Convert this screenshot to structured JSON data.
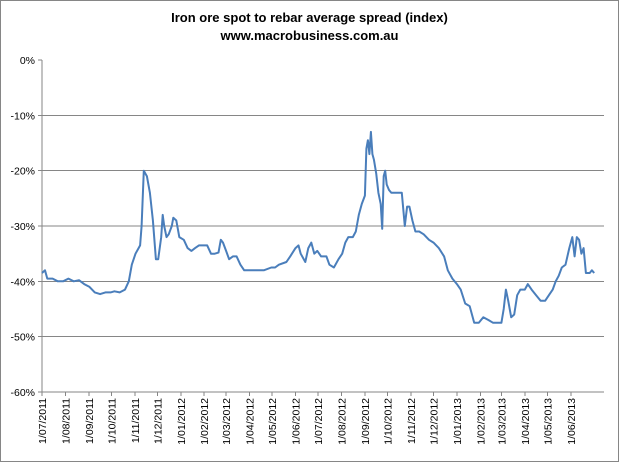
{
  "chart_data": {
    "type": "line",
    "title": "Iron ore spot to rebar average spread (index)",
    "subtitle": "www.macrobusiness.com.au",
    "xlabel": "",
    "ylabel": "",
    "ylim": [
      -60,
      0
    ],
    "yticks": [
      "0%",
      "-10%",
      "-20%",
      "-30%",
      "-40%",
      "-50%",
      "-60%"
    ],
    "gridlines": [
      -10,
      -20,
      -30,
      -40,
      -50,
      -60
    ],
    "grid": true,
    "legend": "none",
    "line_color": "#4a7ebb",
    "x_start": "2011-07-01",
    "x_end": "2013-07-15",
    "categories": [
      "1/07/2011",
      "1/08/2011",
      "1/09/2011",
      "1/10/2011",
      "1/11/2011",
      "1/12/2011",
      "1/01/2012",
      "1/02/2012",
      "1/03/2012",
      "1/04/2012",
      "1/05/2012",
      "1/06/2012",
      "1/07/2012",
      "1/08/2012",
      "1/09/2012",
      "1/10/2012",
      "1/11/2012",
      "1/12/2012",
      "1/01/2013",
      "1/02/2013",
      "1/03/2013",
      "1/04/2013",
      "1/05/2013",
      "1/06/2013"
    ],
    "series": [
      {
        "points": [
          [
            "2011-07-01",
            -38.5
          ],
          [
            "2011-07-05",
            -38.0
          ],
          [
            "2011-07-08",
            -39.5
          ],
          [
            "2011-07-15",
            -39.5
          ],
          [
            "2011-07-22",
            -40.0
          ],
          [
            "2011-07-29",
            -40.0
          ],
          [
            "2011-08-05",
            -39.5
          ],
          [
            "2011-08-12",
            -40.0
          ],
          [
            "2011-08-19",
            -39.8
          ],
          [
            "2011-08-26",
            -40.5
          ],
          [
            "2011-09-02",
            -41.0
          ],
          [
            "2011-09-09",
            -42.0
          ],
          [
            "2011-09-16",
            -42.3
          ],
          [
            "2011-09-23",
            -42.0
          ],
          [
            "2011-09-30",
            -42.0
          ],
          [
            "2011-10-05",
            -41.8
          ],
          [
            "2011-10-12",
            -42.0
          ],
          [
            "2011-10-19",
            -41.5
          ],
          [
            "2011-10-24",
            -40.0
          ],
          [
            "2011-10-28",
            -37.0
          ],
          [
            "2011-11-02",
            -35.0
          ],
          [
            "2011-11-06",
            -34.0
          ],
          [
            "2011-11-08",
            -33.5
          ],
          [
            "2011-11-10",
            -30.0
          ],
          [
            "2011-11-13",
            -20.0
          ],
          [
            "2011-11-17",
            -21.0
          ],
          [
            "2011-11-21",
            -24.0
          ],
          [
            "2011-11-25",
            -29.0
          ],
          [
            "2011-11-29",
            -36.0
          ],
          [
            "2011-12-02",
            -36.0
          ],
          [
            "2011-12-06",
            -32.0
          ],
          [
            "2011-12-08",
            -28.0
          ],
          [
            "2011-12-10",
            -30.0
          ],
          [
            "2011-12-13",
            -32.0
          ],
          [
            "2011-12-16",
            -31.5
          ],
          [
            "2011-12-20",
            -30.0
          ],
          [
            "2011-12-22",
            -28.5
          ],
          [
            "2011-12-26",
            -29.0
          ],
          [
            "2011-12-30",
            -32.0
          ],
          [
            "2012-01-05",
            -32.5
          ],
          [
            "2012-01-10",
            -34.0
          ],
          [
            "2012-01-15",
            -34.5
          ],
          [
            "2012-01-20",
            -34.0
          ],
          [
            "2012-01-25",
            -33.5
          ],
          [
            "2012-01-30",
            -33.5
          ],
          [
            "2012-02-05",
            -33.5
          ],
          [
            "2012-02-10",
            -35.0
          ],
          [
            "2012-02-15",
            -35.0
          ],
          [
            "2012-02-20",
            -34.8
          ],
          [
            "2012-02-23",
            -32.5
          ],
          [
            "2012-02-26",
            -33.0
          ],
          [
            "2012-03-01",
            -34.5
          ],
          [
            "2012-03-05",
            -36.0
          ],
          [
            "2012-03-10",
            -35.5
          ],
          [
            "2012-03-15",
            -35.5
          ],
          [
            "2012-03-20",
            -37.0
          ],
          [
            "2012-03-25",
            -38.0
          ],
          [
            "2012-04-01",
            -38.0
          ],
          [
            "2012-04-10",
            -38.0
          ],
          [
            "2012-04-20",
            -38.0
          ],
          [
            "2012-04-30",
            -37.5
          ],
          [
            "2012-05-05",
            -37.5
          ],
          [
            "2012-05-10",
            -37.0
          ],
          [
            "2012-05-20",
            -36.5
          ],
          [
            "2012-05-25",
            -35.5
          ],
          [
            "2012-06-01",
            -34.0
          ],
          [
            "2012-06-05",
            -33.5
          ],
          [
            "2012-06-08",
            -35.0
          ],
          [
            "2012-06-14",
            -36.5
          ],
          [
            "2012-06-18",
            -34.0
          ],
          [
            "2012-06-22",
            -33.0
          ],
          [
            "2012-06-26",
            -35.0
          ],
          [
            "2012-06-30",
            -34.5
          ],
          [
            "2012-07-05",
            -35.5
          ],
          [
            "2012-07-12",
            -35.5
          ],
          [
            "2012-07-16",
            -37.0
          ],
          [
            "2012-07-22",
            -37.5
          ],
          [
            "2012-07-28",
            -36.0
          ],
          [
            "2012-08-02",
            -35.0
          ],
          [
            "2012-08-06",
            -33.0
          ],
          [
            "2012-08-10",
            -32.0
          ],
          [
            "2012-08-16",
            -32.0
          ],
          [
            "2012-08-20",
            -31.0
          ],
          [
            "2012-08-24",
            -28.0
          ],
          [
            "2012-08-28",
            -26.0
          ],
          [
            "2012-09-01",
            -24.5
          ],
          [
            "2012-09-03",
            -16.0
          ],
          [
            "2012-09-05",
            -14.5
          ],
          [
            "2012-09-07",
            -17.0
          ],
          [
            "2012-09-09",
            -13.0
          ],
          [
            "2012-09-11",
            -17.0
          ],
          [
            "2012-09-13",
            -18.0
          ],
          [
            "2012-09-16",
            -20.5
          ],
          [
            "2012-09-19",
            -24.0
          ],
          [
            "2012-09-22",
            -26.0
          ],
          [
            "2012-09-24",
            -30.5
          ],
          [
            "2012-09-26",
            -21.0
          ],
          [
            "2012-09-28",
            -20.0
          ],
          [
            "2012-09-30",
            -22.5
          ],
          [
            "2012-10-03",
            -23.5
          ],
          [
            "2012-10-06",
            -24.0
          ],
          [
            "2012-10-15",
            -24.0
          ],
          [
            "2012-10-20",
            -24.0
          ],
          [
            "2012-10-24",
            -30.0
          ],
          [
            "2012-10-27",
            -26.5
          ],
          [
            "2012-10-30",
            -26.5
          ],
          [
            "2012-11-03",
            -29.0
          ],
          [
            "2012-11-07",
            -31.0
          ],
          [
            "2012-11-12",
            -31.0
          ],
          [
            "2012-11-18",
            -31.5
          ],
          [
            "2012-11-25",
            -32.5
          ],
          [
            "2012-12-01",
            -33.0
          ],
          [
            "2012-12-08",
            -34.0
          ],
          [
            "2012-12-15",
            -35.5
          ],
          [
            "2012-12-20",
            -38.0
          ],
          [
            "2012-12-26",
            -39.5
          ],
          [
            "2013-01-01",
            -40.5
          ],
          [
            "2013-01-06",
            -41.5
          ],
          [
            "2013-01-12",
            -44.0
          ],
          [
            "2013-01-18",
            -44.5
          ],
          [
            "2013-01-24",
            -47.5
          ],
          [
            "2013-01-30",
            -47.5
          ],
          [
            "2013-02-05",
            -46.5
          ],
          [
            "2013-02-12",
            -47.0
          ],
          [
            "2013-02-18",
            -47.5
          ],
          [
            "2013-02-25",
            -47.5
          ],
          [
            "2013-03-01",
            -47.5
          ],
          [
            "2013-03-04",
            -45.0
          ],
          [
            "2013-03-07",
            -41.5
          ],
          [
            "2013-03-10",
            -43.5
          ],
          [
            "2013-03-14",
            -46.5
          ],
          [
            "2013-03-18",
            -46.0
          ],
          [
            "2013-03-22",
            -42.5
          ],
          [
            "2013-03-26",
            -41.5
          ],
          [
            "2013-04-01",
            -41.5
          ],
          [
            "2013-04-05",
            -40.5
          ],
          [
            "2013-04-10",
            -41.5
          ],
          [
            "2013-04-16",
            -42.5
          ],
          [
            "2013-04-22",
            -43.5
          ],
          [
            "2013-04-28",
            -43.5
          ],
          [
            "2013-05-03",
            -42.5
          ],
          [
            "2013-05-08",
            -41.5
          ],
          [
            "2013-05-12",
            -40.0
          ],
          [
            "2013-05-16",
            -39.0
          ],
          [
            "2013-05-20",
            -37.5
          ],
          [
            "2013-05-25",
            -37.0
          ],
          [
            "2013-05-30",
            -34.0
          ],
          [
            "2013-06-03",
            -32.0
          ],
          [
            "2013-06-06",
            -35.5
          ],
          [
            "2013-06-09",
            -32.0
          ],
          [
            "2013-06-12",
            -32.5
          ],
          [
            "2013-06-15",
            -35.0
          ],
          [
            "2013-06-18",
            -34.0
          ],
          [
            "2013-06-21",
            -38.5
          ],
          [
            "2013-06-26",
            -38.5
          ],
          [
            "2013-06-29",
            -38.0
          ],
          [
            "2013-07-02",
            -38.5
          ]
        ]
      }
    ]
  }
}
